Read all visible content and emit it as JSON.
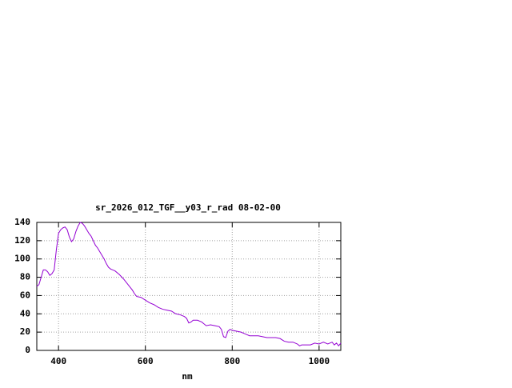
{
  "chart_data": {
    "type": "line",
    "title": "sr_2026_012_TGF__y03_r_rad 08-02-00",
    "x_label": "nm",
    "x": [
      350,
      355,
      360,
      365,
      370,
      375,
      380,
      385,
      390,
      395,
      400,
      405,
      410,
      415,
      420,
      425,
      430,
      435,
      440,
      445,
      450,
      455,
      460,
      465,
      470,
      475,
      480,
      485,
      490,
      495,
      500,
      505,
      510,
      515,
      520,
      525,
      530,
      540,
      550,
      560,
      570,
      575,
      580,
      590,
      600,
      610,
      620,
      630,
      640,
      650,
      660,
      670,
      680,
      690,
      695,
      700,
      705,
      710,
      720,
      730,
      740,
      750,
      760,
      770,
      775,
      780,
      785,
      790,
      795,
      800,
      810,
      820,
      830,
      840,
      850,
      860,
      870,
      880,
      890,
      900,
      910,
      920,
      930,
      940,
      950,
      955,
      960,
      970,
      980,
      990,
      1000,
      1010,
      1020,
      1030,
      1035,
      1040,
      1045,
      1050
    ],
    "series": [
      {
        "name": "sr_2026_012_TGF__y03_r_rad",
        "color": "#9400d3",
        "values": [
          70,
          72,
          80,
          88,
          88,
          86,
          82,
          84,
          88,
          110,
          128,
          132,
          134,
          135,
          132,
          124,
          119,
          122,
          130,
          136,
          140,
          139,
          136,
          132,
          128,
          125,
          120,
          115,
          112,
          108,
          104,
          100,
          95,
          91,
          89,
          88,
          87,
          83,
          78,
          72,
          66,
          62,
          59,
          58,
          55,
          52,
          50,
          47,
          45,
          44,
          43,
          40,
          39,
          37,
          35,
          30,
          31,
          33,
          33,
          31,
          27,
          28,
          27,
          26,
          23,
          15,
          14,
          21,
          23,
          22,
          21,
          20,
          18,
          16,
          16,
          16,
          15,
          14,
          14,
          14,
          13,
          10,
          9,
          9,
          7,
          5,
          6,
          6,
          6,
          8,
          7,
          9,
          7,
          9,
          6,
          8,
          5,
          8
        ]
      }
    ],
    "xlim": [
      350,
      1050
    ],
    "ylim": [
      0,
      140
    ],
    "xticks": [
      400,
      600,
      800,
      1000
    ],
    "yticks": [
      0,
      20,
      40,
      60,
      80,
      100,
      120,
      140
    ],
    "grid": true
  }
}
